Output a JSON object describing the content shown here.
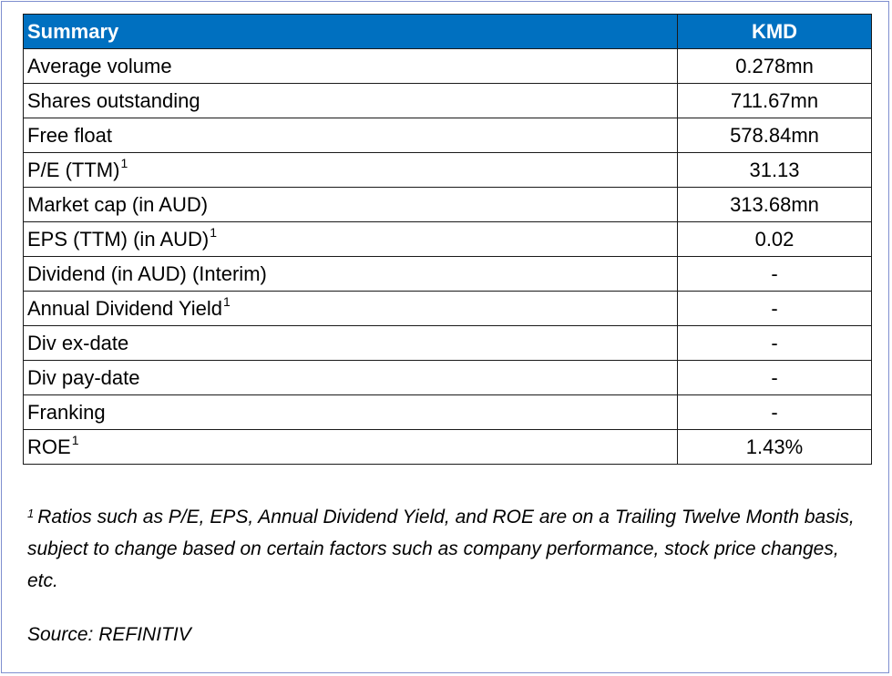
{
  "table": {
    "header": {
      "label": "Summary",
      "value": "KMD"
    },
    "rows": [
      {
        "label": "Average volume",
        "marker": "",
        "value": "0.278mn"
      },
      {
        "label": "Shares outstanding",
        "marker": "",
        "value": "711.67mn"
      },
      {
        "label": "Free float",
        "marker": "",
        "value": "578.84mn"
      },
      {
        "label": "P/E (TTM)",
        "marker": "1",
        "value": "31.13"
      },
      {
        "label": "Market cap (in AUD)",
        "marker": "",
        "value": "313.68mn"
      },
      {
        "label": "EPS (TTM) (in AUD)",
        "marker": "1",
        "value": "0.02"
      },
      {
        "label": "Dividend (in AUD) (Interim)",
        "marker": "",
        "value": "-"
      },
      {
        "label": "Annual Dividend Yield",
        "marker": "1",
        "value": "-"
      },
      {
        "label": "Div ex-date",
        "marker": "",
        "value": "-"
      },
      {
        "label": "Div pay-date",
        "marker": "",
        "value": "-"
      },
      {
        "label": "Franking",
        "marker": "",
        "value": "-"
      },
      {
        "label": "ROE",
        "marker": "1",
        "value": "1.43%"
      }
    ]
  },
  "footnote": {
    "marker": "1",
    "text": "Ratios such as P/E, EPS, Annual Dividend Yield, and ROE are on a Trailing Twelve Month basis, subject to change based on certain factors such as company performance, stock price changes, etc."
  },
  "source": "Source: REFINITIV",
  "colors": {
    "header_bg": "#0070c0",
    "header_text": "#ffffff",
    "frame_border": "#7f8fcf"
  }
}
